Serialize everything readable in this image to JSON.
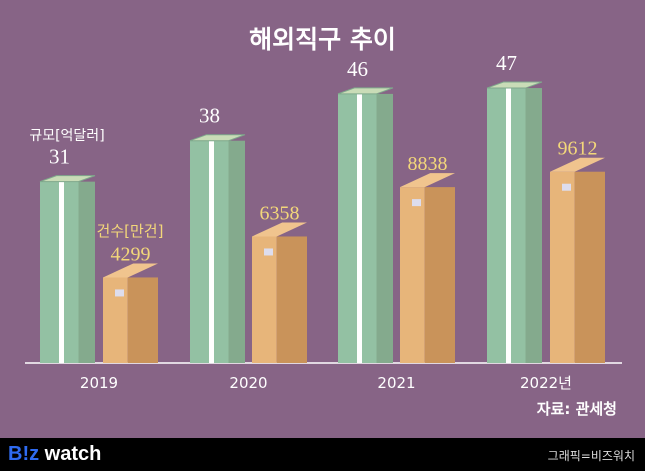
{
  "title": "해외직구 추이",
  "source": "자료: 관세청",
  "footer": {
    "logo_prefix": "B!z",
    "logo_suffix": " watch",
    "credit": "그래픽=비즈워치"
  },
  "colors": {
    "background": "#876486",
    "money": "#93c1a3",
    "box": "#e7b57a",
    "count_label": "#f3d77a"
  },
  "chart_data": {
    "type": "bar",
    "title": "해외직구 추이",
    "categories": [
      "2019",
      "2020",
      "2021",
      "2022년"
    ],
    "series": [
      {
        "name": "규모[억달러]",
        "values": [
          31,
          38,
          46,
          47
        ]
      },
      {
        "name": "건수[만건]",
        "values": [
          4299,
          6358,
          8838,
          9612
        ]
      }
    ],
    "xlabel": "",
    "ylabel": "",
    "grid": false
  }
}
